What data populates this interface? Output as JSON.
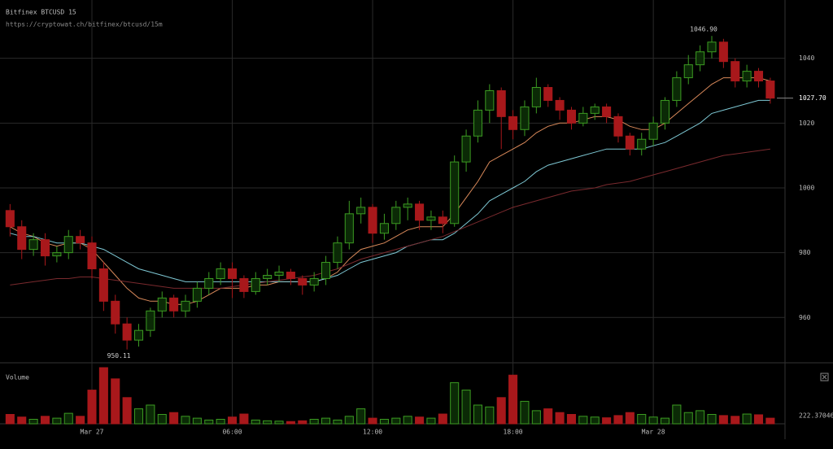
{
  "chart_data": {
    "type": "candlestick",
    "title": "Bitfinex BTCUSD 15",
    "subtitle": "https://cryptowat.ch/bitfinex/btcusd/15m",
    "x": [
      -3.5,
      -3,
      -2.5,
      -2,
      -1.5,
      -1,
      -0.5,
      0,
      0.5,
      1,
      1.5,
      2,
      2.5,
      3,
      3.5,
      4,
      4.5,
      5,
      5.5,
      6,
      6.5,
      7,
      7.5,
      8,
      8.5,
      9,
      9.5,
      10,
      10.5,
      11,
      11.5,
      12,
      12.5,
      13,
      13.5,
      14,
      14.5,
      15,
      15.5,
      16,
      16.5,
      17,
      17.5,
      18,
      18.5,
      19,
      19.5,
      20,
      20.5,
      21,
      21.5,
      22,
      22.5,
      23,
      23.5,
      24,
      24.5,
      25,
      25.5,
      26,
      26.5,
      27,
      27.5,
      28,
      28.5,
      29
    ],
    "open": [
      993,
      988,
      981,
      984,
      979,
      980,
      985,
      983,
      975,
      965,
      958,
      953,
      956,
      962,
      966,
      962,
      965,
      969,
      972,
      975,
      972,
      968,
      972,
      973,
      974,
      972,
      970,
      972,
      977,
      983,
      992,
      994,
      986,
      989,
      994,
      995,
      990,
      991,
      989,
      1008,
      1016,
      1024,
      1030,
      1022,
      1018,
      1025,
      1031,
      1027,
      1024,
      1020,
      1023,
      1025,
      1022,
      1016,
      1012,
      1015,
      1020,
      1027,
      1034,
      1038,
      1042,
      1045,
      1039,
      1033,
      1036,
      1033
    ],
    "high": [
      995,
      990,
      986,
      986,
      982,
      987,
      987,
      985,
      977,
      967,
      960,
      958,
      963,
      968,
      967,
      967,
      971,
      974,
      977,
      977,
      973,
      974,
      975,
      976,
      975,
      973,
      974,
      979,
      985,
      996,
      997,
      995,
      992,
      996,
      997,
      996,
      993,
      993,
      1010,
      1018,
      1027,
      1032,
      1031,
      1024,
      1027,
      1034,
      1032,
      1028,
      1025,
      1025,
      1026,
      1026,
      1023,
      1017,
      1017,
      1022,
      1028,
      1036,
      1041,
      1044,
      1046.9,
      1046,
      1040,
      1038,
      1037,
      1034
    ],
    "low": [
      985,
      978,
      979,
      976,
      977,
      978,
      981,
      972,
      962,
      955,
      950.11,
      951,
      954,
      960,
      960,
      960,
      963,
      967,
      970,
      966,
      966,
      967,
      970,
      971,
      970,
      967,
      968,
      970,
      975,
      981,
      989,
      983,
      984,
      987,
      990,
      987,
      987,
      986,
      988,
      1005,
      1014,
      1020,
      1012,
      1015,
      1016,
      1023,
      1025,
      1021,
      1018,
      1019,
      1021,
      1020,
      1014,
      1010,
      1010,
      1013,
      1018,
      1025,
      1032,
      1036,
      1040,
      1037,
      1031,
      1031,
      1031,
      1026
    ],
    "close": [
      988,
      981,
      984,
      979,
      980,
      985,
      983,
      975,
      965,
      958,
      953,
      956,
      962,
      966,
      962,
      965,
      969,
      972,
      975,
      972,
      968,
      972,
      973,
      974,
      972,
      970,
      972,
      977,
      983,
      992,
      994,
      986,
      989,
      994,
      995,
      990,
      991,
      989,
      1008,
      1016,
      1024,
      1030,
      1022,
      1018,
      1025,
      1031,
      1027,
      1024,
      1020,
      1023,
      1025,
      1022,
      1016,
      1012,
      1015,
      1020,
      1027,
      1034,
      1038,
      1042,
      1045,
      1039,
      1033,
      1036,
      1033,
      1027.7
    ],
    "up_color": "#3c9b22",
    "down_color": "#a8181b",
    "lines": [
      {
        "color": "#d9895a",
        "values": [
          988,
          986,
          985,
          983,
          982,
          983,
          983,
          981,
          977,
          973,
          969,
          966,
          965,
          965,
          964,
          964,
          965,
          967,
          969,
          969,
          969,
          970,
          970,
          971,
          971,
          971,
          971,
          972,
          974,
          978,
          981,
          982,
          983,
          985,
          987,
          988,
          988,
          988,
          992,
          997,
          1002,
          1008,
          1010,
          1012,
          1014,
          1017,
          1019,
          1020,
          1020,
          1021,
          1022,
          1022,
          1021,
          1019,
          1018,
          1018,
          1020,
          1023,
          1026,
          1029,
          1032,
          1034,
          1034,
          1034,
          1034,
          1033
        ]
      },
      {
        "color": "#7ec8d4",
        "values": [
          986,
          985,
          985,
          984,
          983,
          983,
          983,
          982,
          981,
          979,
          977,
          975,
          974,
          973,
          972,
          971,
          971,
          971,
          971,
          971,
          971,
          971,
          971,
          971,
          971,
          971,
          971,
          972,
          973,
          975,
          977,
          978,
          979,
          980,
          982,
          983,
          984,
          984,
          986,
          989,
          992,
          996,
          998,
          1000,
          1002,
          1005,
          1007,
          1008,
          1009,
          1010,
          1011,
          1012,
          1012,
          1012,
          1012,
          1013,
          1014,
          1016,
          1018,
          1020,
          1023,
          1024,
          1025,
          1026,
          1027,
          1027
        ]
      },
      {
        "color": "#7a2a2e",
        "values": [
          970,
          970.5,
          971,
          971.5,
          972,
          972,
          972.5,
          972.5,
          972,
          971.5,
          971,
          970.5,
          970,
          969.5,
          969,
          969,
          969,
          969,
          969,
          969.5,
          970,
          970.5,
          971,
          971.5,
          972,
          972.5,
          973,
          974,
          975,
          976.5,
          978,
          979,
          980,
          981,
          982,
          983,
          984,
          985,
          986.5,
          988,
          989.5,
          991,
          992.5,
          994,
          995,
          996,
          997,
          998,
          999,
          999.5,
          1000,
          1001,
          1001.5,
          1002,
          1003,
          1004,
          1005,
          1006,
          1007,
          1008,
          1009,
          1010,
          1010.5,
          1011,
          1011.5,
          1012
        ]
      }
    ],
    "xlim": [
      -3.93,
      29.63
    ],
    "xticks": [
      {
        "value": 0,
        "label": "Mar 27"
      },
      {
        "value": 6,
        "label": "06:00"
      },
      {
        "value": 12,
        "label": "12:00"
      },
      {
        "value": 18,
        "label": "18:00"
      },
      {
        "value": 24,
        "label": "Mar 28"
      }
    ],
    "ylim": [
      946,
      1058
    ],
    "yticks": [
      960,
      980,
      1000,
      1020,
      1040
    ],
    "grid": true,
    "annotations": [
      {
        "x": 26.5,
        "y": 1046.9,
        "label": "1046.90"
      },
      {
        "x": 1.5,
        "y": 950.11,
        "label": "950.11"
      }
    ],
    "last_price": {
      "value": 1027.7,
      "label": "1027.70"
    },
    "volume": {
      "title": "Volume",
      "ylim": [
        0,
        1500
      ],
      "ma_value": 222.370468,
      "values": [
        250,
        180,
        120,
        200,
        150,
        280,
        200,
        900,
        1500,
        1200,
        700,
        400,
        500,
        250,
        300,
        200,
        150,
        100,
        120,
        180,
        260,
        100,
        80,
        70,
        60,
        80,
        120,
        150,
        100,
        200,
        400,
        150,
        120,
        150,
        200,
        180,
        150,
        260,
        1100,
        900,
        500,
        450,
        700,
        1300,
        600,
        350,
        400,
        300,
        250,
        200,
        180,
        160,
        220,
        300,
        250,
        180,
        150,
        500,
        300,
        350,
        250,
        220,
        200,
        260,
        240,
        150
      ]
    }
  }
}
